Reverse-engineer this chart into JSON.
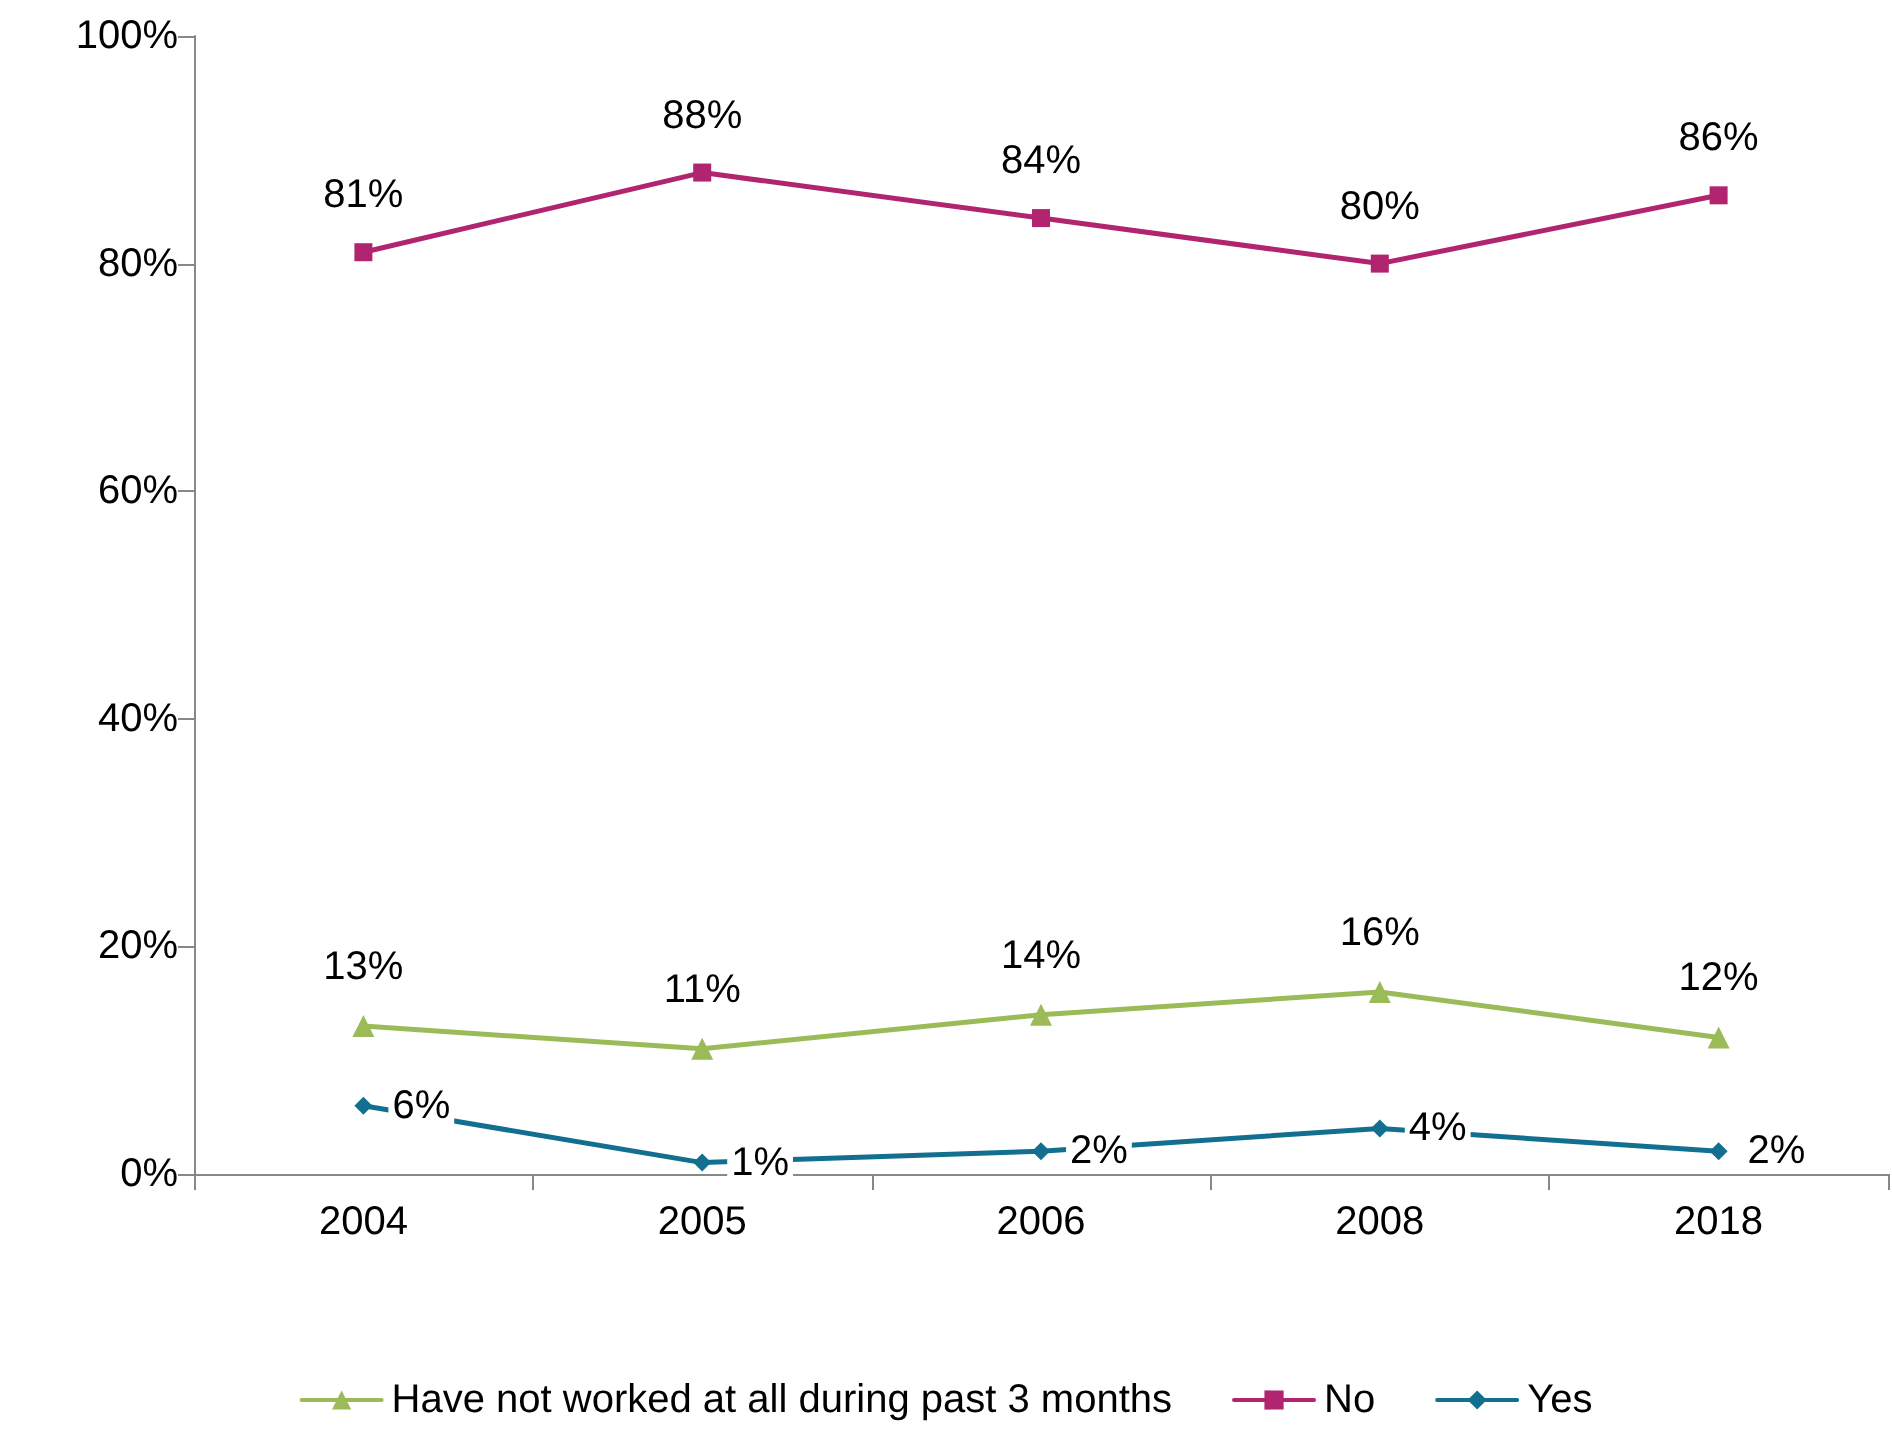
{
  "chart_data": {
    "type": "line",
    "categories": [
      "2004",
      "2005",
      "2006",
      "2008",
      "2018"
    ],
    "series": [
      {
        "name": "Yes",
        "color": "#136f8f",
        "marker": "diamond",
        "values": [
          6,
          1,
          2,
          4,
          2
        ],
        "value_labels": [
          "6%",
          "1%",
          "2%",
          "4%",
          "2%"
        ]
      },
      {
        "name": "No",
        "color": "#b02470",
        "marker": "square",
        "values": [
          81,
          88,
          84,
          80,
          86
        ],
        "value_labels": [
          "81%",
          "88%",
          "84%",
          "80%",
          "86%"
        ]
      },
      {
        "name": "Have not worked at all during past 3 months",
        "color": "#9bbb59",
        "marker": "triangle",
        "values": [
          13,
          11,
          14,
          16,
          12
        ],
        "value_labels": [
          "13%",
          "11%",
          "14%",
          "16%",
          "12%"
        ]
      }
    ],
    "ylim": [
      0,
      100
    ],
    "yticks": [
      {
        "value": 0,
        "label": "0%"
      },
      {
        "value": 20,
        "label": "20%"
      },
      {
        "value": 40,
        "label": "40%"
      },
      {
        "value": 60,
        "label": "60%"
      },
      {
        "value": 80,
        "label": "80%"
      },
      {
        "value": 100,
        "label": "100%"
      }
    ],
    "grid": false,
    "legend": "bottom",
    "line_style": "solid"
  }
}
